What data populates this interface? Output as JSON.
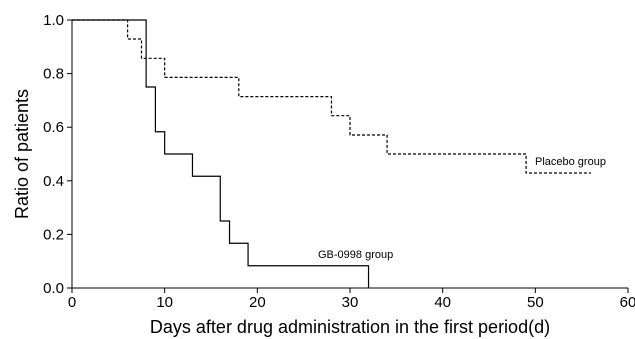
{
  "chart_data": {
    "type": "line",
    "title": "",
    "xlabel": "Days after drug administration in the first period(d)",
    "ylabel": "Ratio of patients",
    "xlim": [
      0,
      60
    ],
    "ylim": [
      0,
      1.0
    ],
    "x_ticks": [
      "0",
      "10",
      "20",
      "30",
      "40",
      "50",
      "60"
    ],
    "y_ticks": [
      "0.0",
      "0.2",
      "0.4",
      "0.6",
      "0.8",
      "1.0"
    ],
    "grid": false,
    "legend": "none (series labelled directly on chart)",
    "step": true,
    "series": [
      {
        "name": "Placebo group",
        "style": "dashed",
        "color": "#000000",
        "x": [
          0,
          6,
          7.5,
          10,
          18,
          28,
          30,
          34,
          49,
          56
        ],
        "y": [
          1.0,
          0.929,
          0.857,
          0.786,
          0.714,
          0.643,
          0.571,
          0.5,
          0.429,
          0.429
        ]
      },
      {
        "name": "GB-0998 group",
        "style": "solid",
        "color": "#000000",
        "x": [
          0,
          8,
          9,
          10,
          13,
          16,
          17,
          19,
          32
        ],
        "y": [
          1.0,
          0.75,
          0.583,
          0.5,
          0.417,
          0.25,
          0.167,
          0.083,
          0.0
        ]
      }
    ]
  }
}
